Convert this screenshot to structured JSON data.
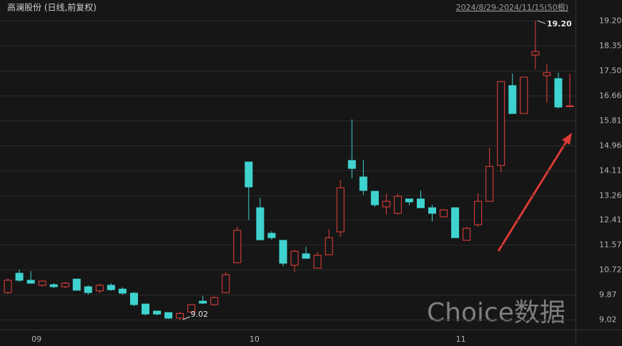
{
  "chart_data": {
    "type": "candlestick",
    "title": "高澜股份 (日线,前复权)",
    "subtitle": "2024/8/29-2024/11/15(50根)",
    "watermark": "Choice数据",
    "categories": [
      null,
      null,
      "09",
      null,
      null,
      null,
      null,
      null,
      null,
      null,
      null,
      null,
      null,
      null,
      null,
      null,
      null,
      null,
      null,
      null,
      null,
      "10",
      null,
      null,
      null,
      null,
      null,
      null,
      null,
      null,
      null,
      null,
      null,
      null,
      null,
      null,
      null,
      null,
      null,
      "11",
      null,
      null,
      null,
      null,
      null,
      null,
      null,
      null,
      null,
      null
    ],
    "series": [
      {
        "up_color": "#e8413c",
        "down_color": "#3fd3d0",
        "open": [
          9.94,
          10.6,
          10.36,
          10.19,
          10.21,
          10.14,
          10.4,
          10.14,
          10.0,
          10.19,
          10.06,
          9.92,
          9.55,
          9.31,
          9.26,
          9.07,
          9.28,
          9.65,
          9.53,
          9.94,
          10.96,
          14.39,
          12.83,
          11.96,
          11.72,
          10.87,
          11.26,
          10.77,
          11.23,
          12.01,
          14.44,
          13.88,
          13.39,
          12.86,
          12.64,
          13.13,
          13.13,
          12.83,
          12.52,
          12.83,
          11.72,
          12.25,
          13.05,
          14.27,
          16.99,
          16.04,
          18.03,
          17.33,
          17.23,
          16.28
        ],
        "high": [
          10.43,
          10.72,
          10.67,
          10.36,
          10.26,
          10.31,
          10.4,
          10.19,
          10.24,
          10.26,
          10.12,
          9.96,
          9.55,
          9.31,
          9.26,
          9.28,
          9.53,
          9.84,
          9.82,
          10.65,
          12.18,
          14.39,
          13.17,
          12.03,
          11.72,
          11.4,
          11.5,
          11.33,
          12.1,
          13.78,
          15.84,
          14.46,
          13.39,
          13.3,
          13.3,
          13.13,
          13.42,
          12.93,
          12.76,
          12.83,
          12.18,
          13.32,
          14.87,
          17.13,
          17.4,
          17.28,
          19.2,
          17.72,
          17.43,
          17.4
        ],
        "low": [
          9.89,
          10.31,
          10.26,
          10.14,
          10.09,
          10.09,
          10.02,
          9.87,
          9.92,
          10.0,
          9.87,
          9.48,
          9.16,
          9.16,
          9.04,
          9.02,
          9.28,
          9.55,
          9.5,
          9.92,
          10.94,
          12.41,
          11.72,
          11.74,
          10.84,
          10.65,
          11.09,
          10.77,
          11.23,
          11.84,
          13.83,
          13.27,
          12.86,
          12.59,
          12.59,
          12.91,
          12.83,
          12.37,
          12.52,
          11.81,
          11.72,
          12.18,
          13.05,
          14.03,
          16.04,
          16.04,
          17.55,
          16.4,
          16.21,
          16.28
        ],
        "close": [
          10.36,
          10.36,
          10.26,
          10.33,
          10.14,
          10.26,
          10.02,
          9.94,
          10.19,
          10.04,
          9.92,
          9.53,
          9.21,
          9.21,
          9.07,
          9.23,
          9.53,
          9.58,
          9.77,
          10.55,
          12.06,
          13.54,
          11.74,
          11.81,
          10.94,
          11.35,
          11.11,
          11.21,
          11.81,
          13.51,
          14.17,
          13.42,
          12.93,
          13.05,
          13.22,
          13.03,
          12.83,
          12.64,
          12.76,
          11.81,
          12.13,
          13.05,
          14.24,
          17.13,
          16.04,
          17.28,
          18.15,
          17.43,
          16.26,
          16.3
        ]
      }
    ],
    "annotations": [
      "9.02",
      "19.20"
    ],
    "ylim": [
      8.68,
      19.42
    ],
    "yticks": [
      9.02,
      9.87,
      10.72,
      11.57,
      12.41,
      13.26,
      14.11,
      14.96,
      15.81,
      16.66,
      {
        "value": 17.5,
        "label": "17.50"
      },
      18.35,
      {
        "value": 19.2,
        "label": "19.20"
      }
    ],
    "grid": true
  }
}
